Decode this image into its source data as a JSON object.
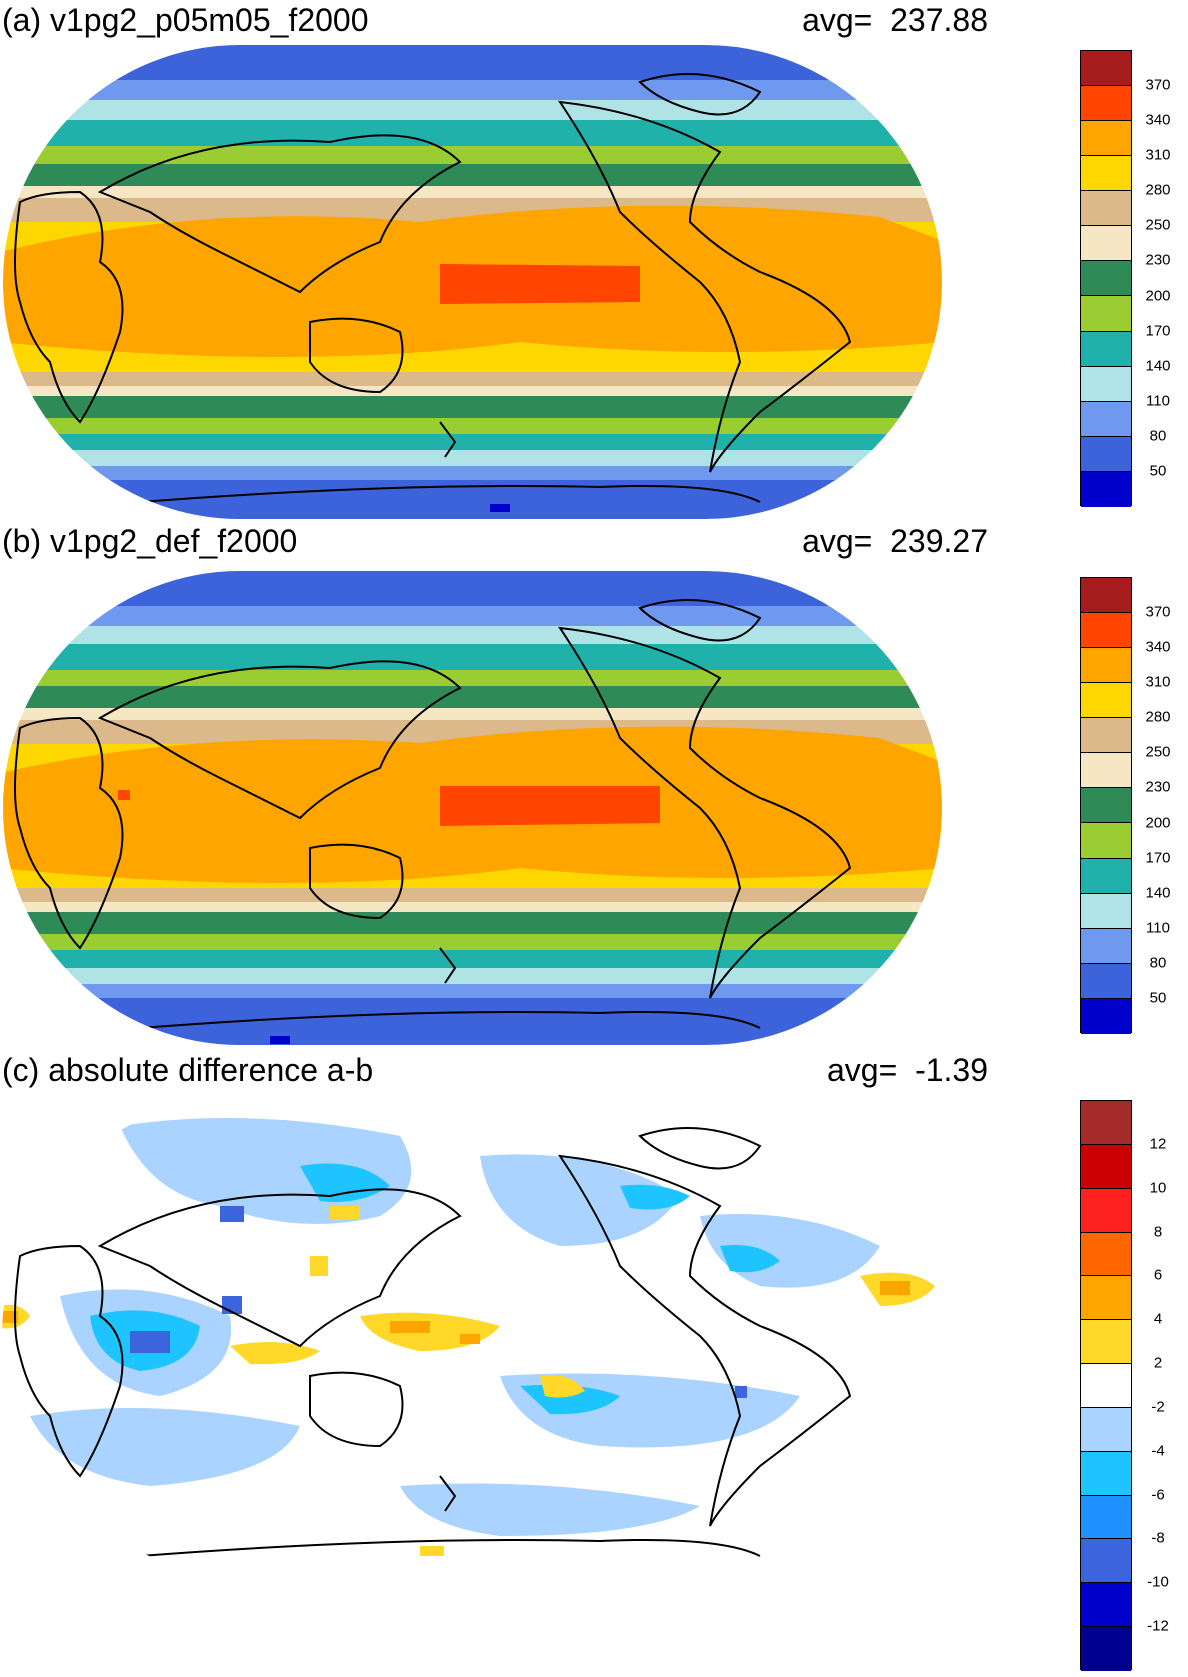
{
  "panels": [
    {
      "title": "(a) v1pg2_p05m05_f2000",
      "avg_label": "avg=",
      "avg_value": "237.88",
      "colorbar": {
        "colors": [
          "#a61c1c",
          "#ff4500",
          "#ffa500",
          "#ffd700",
          "#dbb98a",
          "#f5e6c4",
          "#2e8b57",
          "#9acd32",
          "#20b2aa",
          "#afe3e6",
          "#6f99ee",
          "#3c63d9",
          "#0000cc"
        ],
        "ticks": [
          "370",
          "340",
          "310",
          "280",
          "250",
          "230",
          "200",
          "170",
          "140",
          "110",
          "80",
          "50"
        ]
      }
    },
    {
      "title": "(b) v1pg2_def_f2000",
      "avg_label": "avg=",
      "avg_value": "239.27",
      "colorbar": {
        "colors": [
          "#a61c1c",
          "#ff4500",
          "#ffa500",
          "#ffd700",
          "#dbb98a",
          "#f5e6c4",
          "#2e8b57",
          "#9acd32",
          "#20b2aa",
          "#afe3e6",
          "#6f99ee",
          "#3c63d9",
          "#0000cc"
        ],
        "ticks": [
          "370",
          "340",
          "310",
          "280",
          "250",
          "230",
          "200",
          "170",
          "140",
          "110",
          "80",
          "50"
        ]
      }
    },
    {
      "title": "(c) absolute difference a-b",
      "avg_label": "avg=",
      "avg_value": "-1.39",
      "colorbar": {
        "colors": [
          "#a52a2a",
          "#cc0000",
          "#ff2020",
          "#ff6600",
          "#ffa500",
          "#ffd82a",
          "#ffffff",
          "#aad4ff",
          "#1ec4ff",
          "#1e90ff",
          "#3c64dc",
          "#0000cc",
          "#000090"
        ],
        "ticks": [
          "12",
          "10",
          "8",
          "6",
          "4",
          "2",
          "-2",
          "-4",
          "-6",
          "-8",
          "-10",
          "-12"
        ]
      }
    }
  ]
}
